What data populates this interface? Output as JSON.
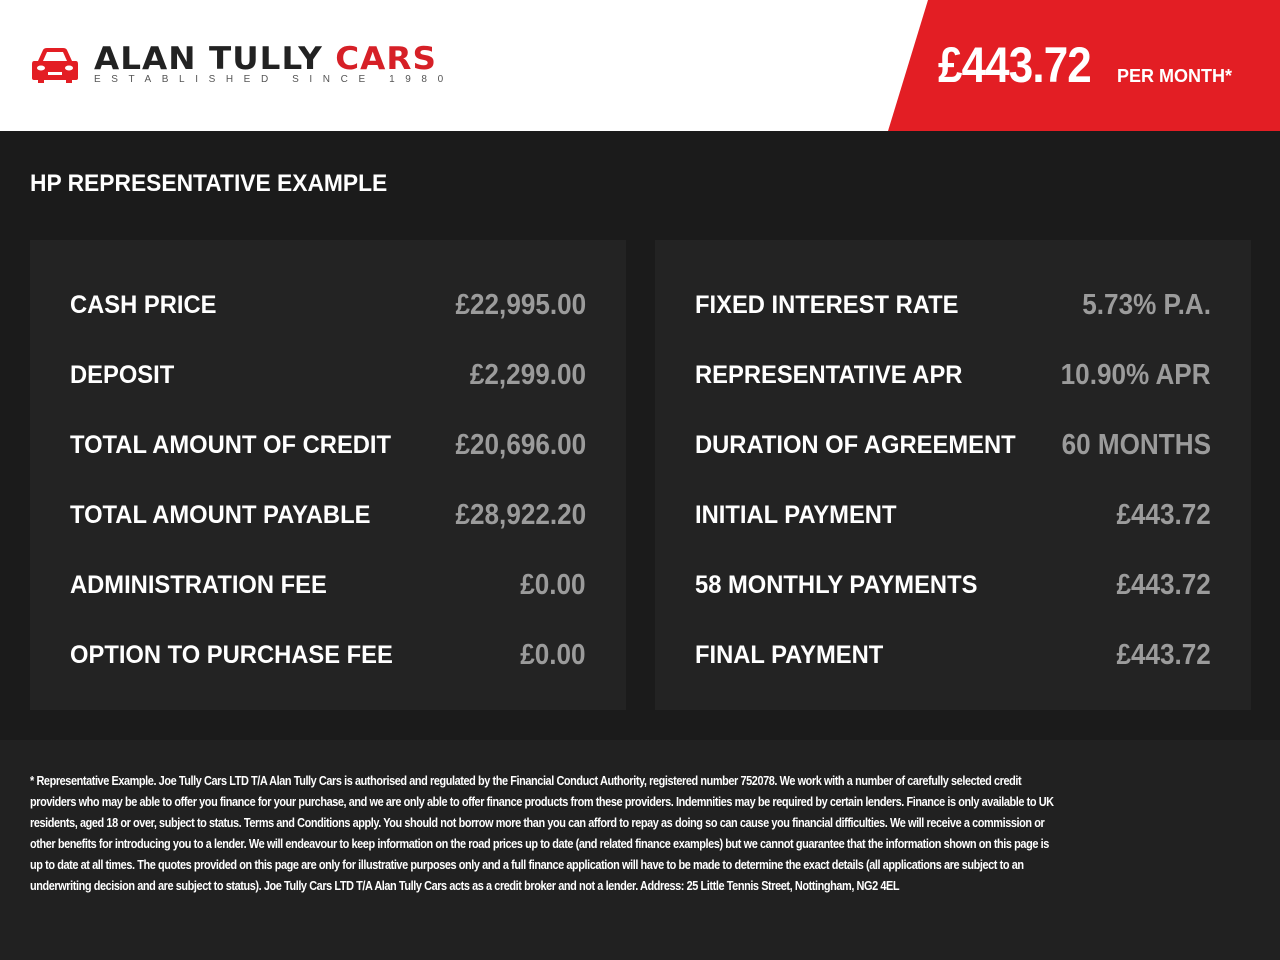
{
  "logo": {
    "name_dark": "ALAN TULLY",
    "name_red": "CARS",
    "tagline": "ESTABLISHED SINCE 1980"
  },
  "header": {
    "monthly_price": "£443.72",
    "per_month": "PER MONTH*"
  },
  "colors": {
    "accent": "#e31e24",
    "background": "#1b1b1b",
    "panel": "#232323",
    "value": "#9b9b9b"
  },
  "title": "HP REPRESENTATIVE EXAMPLE",
  "left": [
    {
      "label": "CASH PRICE",
      "value": "£22,995.00"
    },
    {
      "label": "DEPOSIT",
      "value": "£2,299.00"
    },
    {
      "label": "TOTAL AMOUNT OF CREDIT",
      "value": "£20,696.00"
    },
    {
      "label": "TOTAL AMOUNT PAYABLE",
      "value": "£28,922.20"
    },
    {
      "label": "ADMINISTRATION FEE",
      "value": "£0.00"
    },
    {
      "label": "OPTION TO PURCHASE FEE",
      "value": "£0.00"
    }
  ],
  "right": [
    {
      "label": "FIXED INTEREST RATE",
      "value": "5.73% P.A."
    },
    {
      "label": "REPRESENTATIVE APR",
      "value": "10.90% APR"
    },
    {
      "label": "DURATION OF AGREEMENT",
      "value": "60 MONTHS"
    },
    {
      "label": "INITIAL PAYMENT",
      "value": "£443.72"
    },
    {
      "label": "58 MONTHLY PAYMENTS",
      "value": "£443.72"
    },
    {
      "label": "FINAL PAYMENT",
      "value": "£443.72"
    }
  ],
  "disclaimer": "* Representative Example. Joe Tully Cars LTD T/A  Alan Tully Cars is authorised and regulated by the Financial Conduct Authority, registered number 752078. We work with a number of carefully selected credit providers who may be able to offer you finance for your purchase, and we are only able to offer finance products from these providers. Indemnities may be required by certain lenders. Finance is only available to UK residents, aged 18 or over, subject to status. Terms and Conditions apply. You should not borrow more than you can afford to repay as doing so can cause you financial difficulties. We will receive a commission or other benefits for introducing you to a lender. We will endeavour to keep information on the road prices up to date (and related finance examples) but we cannot guarantee that the information shown on this page is up to date at all times. The quotes provided on this page are only for illustrative purposes only and a full finance application will have to be made to determine the exact details (all applications are subject to an underwriting decision and are subject to status). Joe Tully Cars LTD T/A  Alan Tully Cars acts as a credit broker and not a lender. Address:  25 Little Tennis Street, Nottingham, NG2 4EL"
}
